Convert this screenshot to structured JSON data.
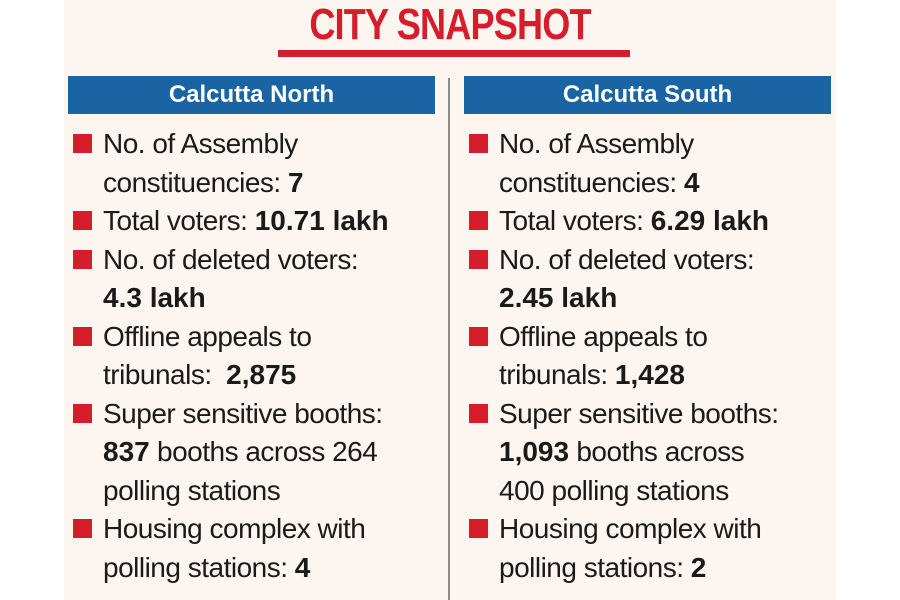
{
  "title": "CITY SNAPSHOT",
  "north": {
    "header": "Calcutta North",
    "assembly": {
      "line1": "No. of Assembly",
      "line2": "constituencies: ",
      "value": "7"
    },
    "voters": {
      "label": "Total voters: ",
      "value": "10.71 lakh"
    },
    "deleted": {
      "label": "No. of deleted voters:",
      "value": "4.3 lakh"
    },
    "appeals": {
      "line1": "Offline appeals to",
      "line2": "tribunals:  ",
      "value": "2,875"
    },
    "booths": {
      "label": "Super sensitive booths:",
      "value": "837",
      "line2_rest": " booths across 264",
      "line3": "polling stations"
    },
    "housing": {
      "line1": "Housing complex with",
      "line2": "polling stations: ",
      "value": "4"
    }
  },
  "south": {
    "header": "Calcutta South",
    "assembly": {
      "line1": "No. of Assembly",
      "line2": "constituencies: ",
      "value": "4"
    },
    "voters": {
      "label": "Total voters: ",
      "value": "6.29 lakh"
    },
    "deleted": {
      "label": "No. of deleted voters:",
      "value": "2.45 lakh"
    },
    "appeals": {
      "line1": "Offline appeals to",
      "line2": "tribunals: ",
      "value": "1,428"
    },
    "booths": {
      "label": "Super sensitive booths:",
      "value": "1,093",
      "line2_rest": " booths across",
      "line3": "400 polling stations"
    },
    "housing": {
      "line1": "Housing complex with",
      "line2": "polling stations: ",
      "value": "2"
    }
  },
  "colors": {
    "accent": "#d61d2b",
    "header_bg": "#1b64a4",
    "panel_bg": "#fdf6f0"
  }
}
